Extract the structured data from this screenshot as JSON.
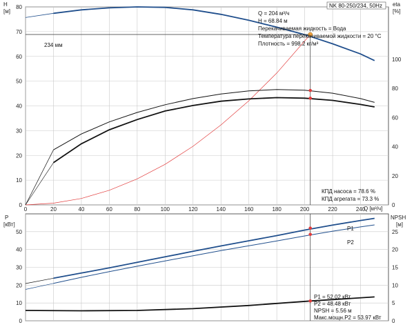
{
  "header": {
    "model": "NK 80-250/234, 50Hz"
  },
  "info_top": [
    "Q = 204 м³/ч",
    "H = 68.84 м",
    "Перекачиваемая жидкость = Вода",
    "Температура перекачиваемой жидкости = 20 °C",
    "Плотность = 998.2 кг/м³"
  ],
  "info_eff": [
    "КПД насоса = 78.6 %",
    "КПД агрегата = 73.3 %"
  ],
  "info_bottom": [
    "P1 = 52.02 кВт",
    "P2 = 48.48 кВт",
    "NPSH = 5.56 м",
    "Макс.мощн.P2 = 53.97 кВт"
  ],
  "colors": {
    "blue": "#1f4e8c",
    "black": "#111111",
    "red": "#e23b3b",
    "orange": "#f4a340"
  },
  "chart_data": [
    {
      "type": "line",
      "title": "",
      "xlabel": "Q [м³/ч]",
      "ylabel_left": "H [м]",
      "ylabel_right": "eta [%]",
      "xlim": [
        0,
        260
      ],
      "ylim": [
        0,
        80
      ],
      "ylim_right": [
        0,
        136
      ],
      "x_ticks": [
        0,
        20,
        40,
        60,
        80,
        100,
        120,
        140,
        160,
        180,
        200,
        220,
        240
      ],
      "y_ticks": [
        0,
        10,
        20,
        30,
        40,
        50,
        60,
        70,
        80
      ],
      "y_right_ticks": [
        0,
        20,
        40,
        60,
        80,
        100
      ],
      "curve_label": "234 мм",
      "duty_point": {
        "q": 204,
        "h": 68.84,
        "eta_pump": 78.6,
        "eta_unit": 73.3
      },
      "series": [
        {
          "key": "head_ext",
          "axis": "left",
          "x": [
            0,
            20
          ],
          "y": [
            75.7,
            77.4
          ]
        },
        {
          "key": "head",
          "axis": "left",
          "x": [
            20,
            40,
            60,
            80,
            100,
            120,
            140,
            160,
            180,
            200,
            220,
            240,
            250
          ],
          "y": [
            77.4,
            78.8,
            79.6,
            80.0,
            79.8,
            78.8,
            77.0,
            74.6,
            71.8,
            68.8,
            65.1,
            61.0,
            58.3
          ]
        },
        {
          "key": "system",
          "axis": "left",
          "x": [
            0,
            20,
            40,
            60,
            80,
            100,
            120,
            140,
            160,
            180,
            204
          ],
          "y": [
            0,
            0.7,
            2.6,
            5.9,
            10.5,
            16.4,
            23.7,
            32.3,
            42.1,
            53.3,
            68.84
          ]
        },
        {
          "key": "eta_pump",
          "axis": "right",
          "x": [
            20,
            40,
            60,
            80,
            100,
            120,
            140,
            160,
            180,
            200,
            220,
            240,
            250
          ],
          "y": [
            37.8,
            48.7,
            57.0,
            63.5,
            68.8,
            73.0,
            76.2,
            78.3,
            79.3,
            78.8,
            76.7,
            73.0,
            70.4
          ]
        },
        {
          "key": "eta_pump_ext",
          "axis": "right",
          "x": [
            0,
            20
          ],
          "y": [
            0,
            37.8
          ]
        },
        {
          "key": "eta_unit",
          "axis": "right",
          "x": [
            20,
            40,
            60,
            80,
            100,
            120,
            140,
            160,
            180,
            200,
            220,
            240,
            250
          ],
          "y": [
            29.0,
            42.0,
            51.6,
            58.6,
            64.5,
            68.3,
            71.2,
            72.8,
            73.7,
            73.3,
            71.8,
            69.0,
            67.3
          ]
        },
        {
          "key": "eta_unit_ext",
          "axis": "right",
          "x": [
            0,
            20
          ],
          "y": [
            0,
            29.0
          ]
        }
      ]
    },
    {
      "type": "line",
      "title": "",
      "xlabel": "",
      "ylabel_left": "P [кВт]",
      "ylabel_right": "NPSH [м]",
      "xlim": [
        0,
        260
      ],
      "ylim": [
        0,
        60
      ],
      "ylim_right": [
        0,
        30
      ],
      "y_ticks": [
        0,
        10,
        20,
        30,
        40,
        50
      ],
      "y_right_ticks": [
        0,
        5,
        10,
        15,
        20,
        25
      ],
      "duty_point": {
        "q": 204,
        "p1": 52.02,
        "p2": 48.48,
        "npsh": 5.56
      },
      "series": [
        {
          "name": "P1",
          "key": "p1",
          "axis": "left",
          "x": [
            20,
            40,
            60,
            80,
            100,
            120,
            140,
            160,
            180,
            200,
            220,
            240,
            250
          ],
          "y": [
            23.9,
            26.8,
            29.7,
            32.8,
            35.9,
            39.0,
            42.0,
            44.9,
            47.8,
            50.9,
            53.7,
            56.3,
            57.5
          ]
        },
        {
          "key": "p1_ext",
          "axis": "left",
          "x": [
            0,
            20
          ],
          "y": [
            20.9,
            23.9
          ]
        },
        {
          "name": "P2",
          "key": "p2",
          "axis": "left",
          "x": [
            20,
            40,
            60,
            80,
            100,
            120,
            140,
            160,
            180,
            200,
            220,
            240,
            250
          ],
          "y": [
            21.0,
            24.4,
            27.6,
            30.6,
            33.6,
            36.5,
            39.4,
            42.1,
            44.8,
            47.6,
            50.3,
            52.7,
            53.8
          ]
        },
        {
          "key": "p2_ext",
          "axis": "left",
          "x": [
            0,
            20
          ],
          "y": [
            17.6,
            21.0
          ]
        },
        {
          "key": "npsh",
          "axis": "right",
          "x": [
            0,
            40,
            80,
            120,
            160,
            204,
            250
          ],
          "y": [
            2.9,
            2.8,
            2.9,
            3.4,
            4.3,
            5.56,
            6.7
          ]
        }
      ]
    }
  ]
}
